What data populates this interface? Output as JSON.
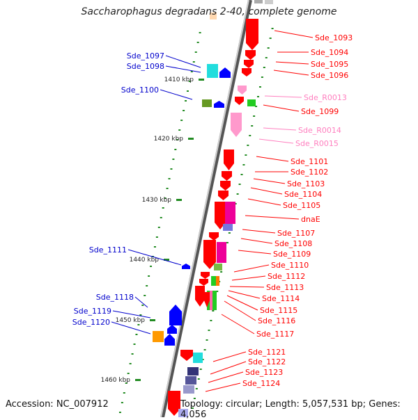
{
  "title": "Saccharophagus degradans 2-40, complete genome",
  "accession": "Accession: NC_007912",
  "topology": "Topology: circular; Length: 5,057,531 bp; Genes: 4,056",
  "scale_ticks": [
    "1410 kbp",
    "1420 kbp",
    "1430 kbp",
    "1440 kbp",
    "1450 kbp",
    "1460 kbp"
  ],
  "colors": {
    "cds_forward": "#ff0000",
    "cds_reverse": "#0000ff",
    "rna": "#ff99cc",
    "backbone": "#888888",
    "tick": "#228b22"
  },
  "labels_right": [
    {
      "text": "Sde_1093",
      "color": "#ff0000"
    },
    {
      "text": "Sde_1094",
      "color": "#ff0000"
    },
    {
      "text": "Sde_1095",
      "color": "#ff0000"
    },
    {
      "text": "Sde_1096",
      "color": "#ff0000"
    },
    {
      "text": "Sde_R0013",
      "color": "#ff7fbf"
    },
    {
      "text": "Sde_1099",
      "color": "#ff0000"
    },
    {
      "text": "Sde_R0014",
      "color": "#ff7fbf"
    },
    {
      "text": "Sde_R0015",
      "color": "#ff7fbf"
    },
    {
      "text": "Sde_1101",
      "color": "#ff0000"
    },
    {
      "text": "Sde_1102",
      "color": "#ff0000"
    },
    {
      "text": "Sde_1103",
      "color": "#ff0000"
    },
    {
      "text": "Sde_1104",
      "color": "#ff0000"
    },
    {
      "text": "Sde_1105",
      "color": "#ff0000"
    },
    {
      "text": "dnaE",
      "color": "#ff0000"
    },
    {
      "text": "Sde_1107",
      "color": "#ff0000"
    },
    {
      "text": "Sde_1108",
      "color": "#ff0000"
    },
    {
      "text": "Sde_1109",
      "color": "#ff0000"
    },
    {
      "text": "Sde_1110",
      "color": "#ff0000"
    },
    {
      "text": "Sde_1112",
      "color": "#ff0000"
    },
    {
      "text": "Sde_1113",
      "color": "#ff0000"
    },
    {
      "text": "Sde_1114",
      "color": "#ff0000"
    },
    {
      "text": "Sde_1115",
      "color": "#ff0000"
    },
    {
      "text": "Sde_1116",
      "color": "#ff0000"
    },
    {
      "text": "Sde_1117",
      "color": "#ff0000"
    },
    {
      "text": "Sde_1121",
      "color": "#ff0000"
    },
    {
      "text": "Sde_1122",
      "color": "#ff0000"
    },
    {
      "text": "Sde_1123",
      "color": "#ff0000"
    },
    {
      "text": "Sde_1124",
      "color": "#ff0000"
    }
  ],
  "labels_left": [
    {
      "text": "Sde_1097",
      "color": "#0000cc"
    },
    {
      "text": "Sde_1098",
      "color": "#0000cc"
    },
    {
      "text": "Sde_1100",
      "color": "#0000cc"
    },
    {
      "text": "Sde_1111",
      "color": "#0000cc"
    },
    {
      "text": "Sde_1118",
      "color": "#0000cc"
    },
    {
      "text": "Sde_1119",
      "color": "#0000cc"
    },
    {
      "text": "Sde_1120",
      "color": "#0000cc"
    }
  ]
}
